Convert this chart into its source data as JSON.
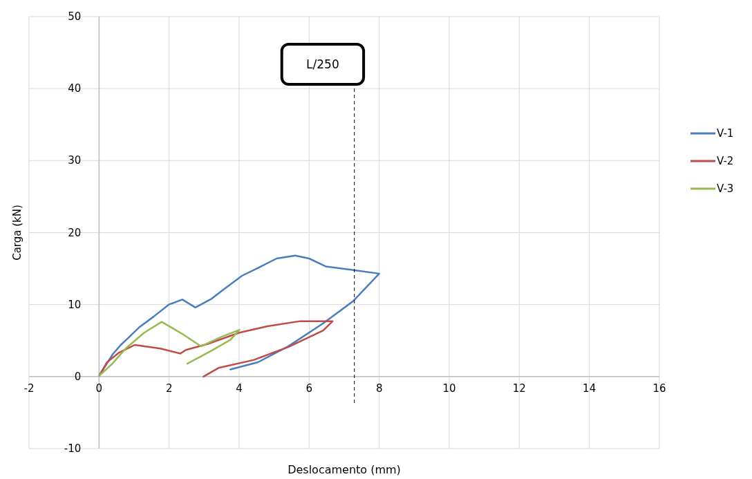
{
  "chart_data": {
    "type": "line",
    "xlabel": "Deslocamento (mm)",
    "ylabel": "Carga (kN)",
    "xlim": [
      -2,
      16
    ],
    "xticks": [
      -2,
      0,
      2,
      4,
      6,
      8,
      10,
      12,
      14,
      16
    ],
    "ylim": [
      -10,
      50
    ],
    "yticks": [
      -10,
      0,
      10,
      20,
      30,
      40,
      50
    ],
    "grid": true,
    "legend": "right",
    "marker": "none",
    "line_style": "solid",
    "ref_lines": [
      {
        "axis": "x",
        "value": 7.29,
        "label": "L/250",
        "line_style": "dashed",
        "color": "#000000"
      }
    ],
    "series": [
      {
        "name": "V-1",
        "color": "#4a7ebb",
        "x": [
          0,
          0.39,
          0.62,
          0.86,
          1.16,
          1.55,
          1.99,
          2.38,
          2.75,
          3.21,
          3.61,
          4.08,
          4.54,
          5.07,
          5.6,
          6.0,
          6.47,
          7.26,
          8.0,
          7.26,
          6.4,
          5.4,
          4.54,
          3.75
        ],
        "values": [
          0.1,
          3.1,
          4.4,
          5.5,
          6.9,
          8.3,
          10.0,
          10.7,
          9.6,
          10.8,
          12.3,
          14.0,
          15.1,
          16.4,
          16.8,
          16.4,
          15.3,
          14.8,
          14.3,
          10.5,
          7.4,
          4.2,
          2.0,
          1.0
        ]
      },
      {
        "name": "V-2",
        "color": "#be4b48",
        "x": [
          0,
          0.23,
          0.56,
          1.02,
          1.75,
          2.32,
          2.48,
          3.08,
          4.01,
          4.81,
          5.74,
          6.67,
          6.4,
          5.4,
          4.41,
          3.41,
          2.98
        ],
        "values": [
          0.1,
          2.0,
          3.3,
          4.4,
          3.9,
          3.2,
          3.7,
          4.5,
          6.1,
          7.0,
          7.7,
          7.7,
          6.4,
          4.1,
          2.3,
          1.2,
          0
        ]
      },
      {
        "name": "V-3",
        "color": "#98b954",
        "x": [
          0,
          0.36,
          0.76,
          1.29,
          1.79,
          2.42,
          2.91,
          3.48,
          4.01,
          3.75,
          3.21,
          2.52
        ],
        "values": [
          0.1,
          1.7,
          3.9,
          6.1,
          7.6,
          5.8,
          4.2,
          5.5,
          6.5,
          5.1,
          3.6,
          1.8
        ]
      }
    ]
  }
}
